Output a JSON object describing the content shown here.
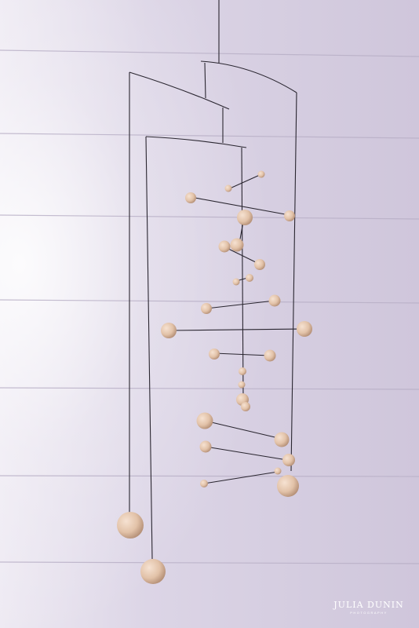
{
  "image": {
    "subject": "hanging mobile",
    "colors": {
      "wall": "#dcd5e6",
      "wall_light": "#f4f1f8",
      "plank_line": "#b9b0c6",
      "wire": "#2a2630",
      "bead": "#e6c9b2",
      "bead_shadow": "#b9937a"
    }
  },
  "watermark": {
    "name": "JULIA DUNIN",
    "subtitle": "PHOTOGRAPHY"
  }
}
